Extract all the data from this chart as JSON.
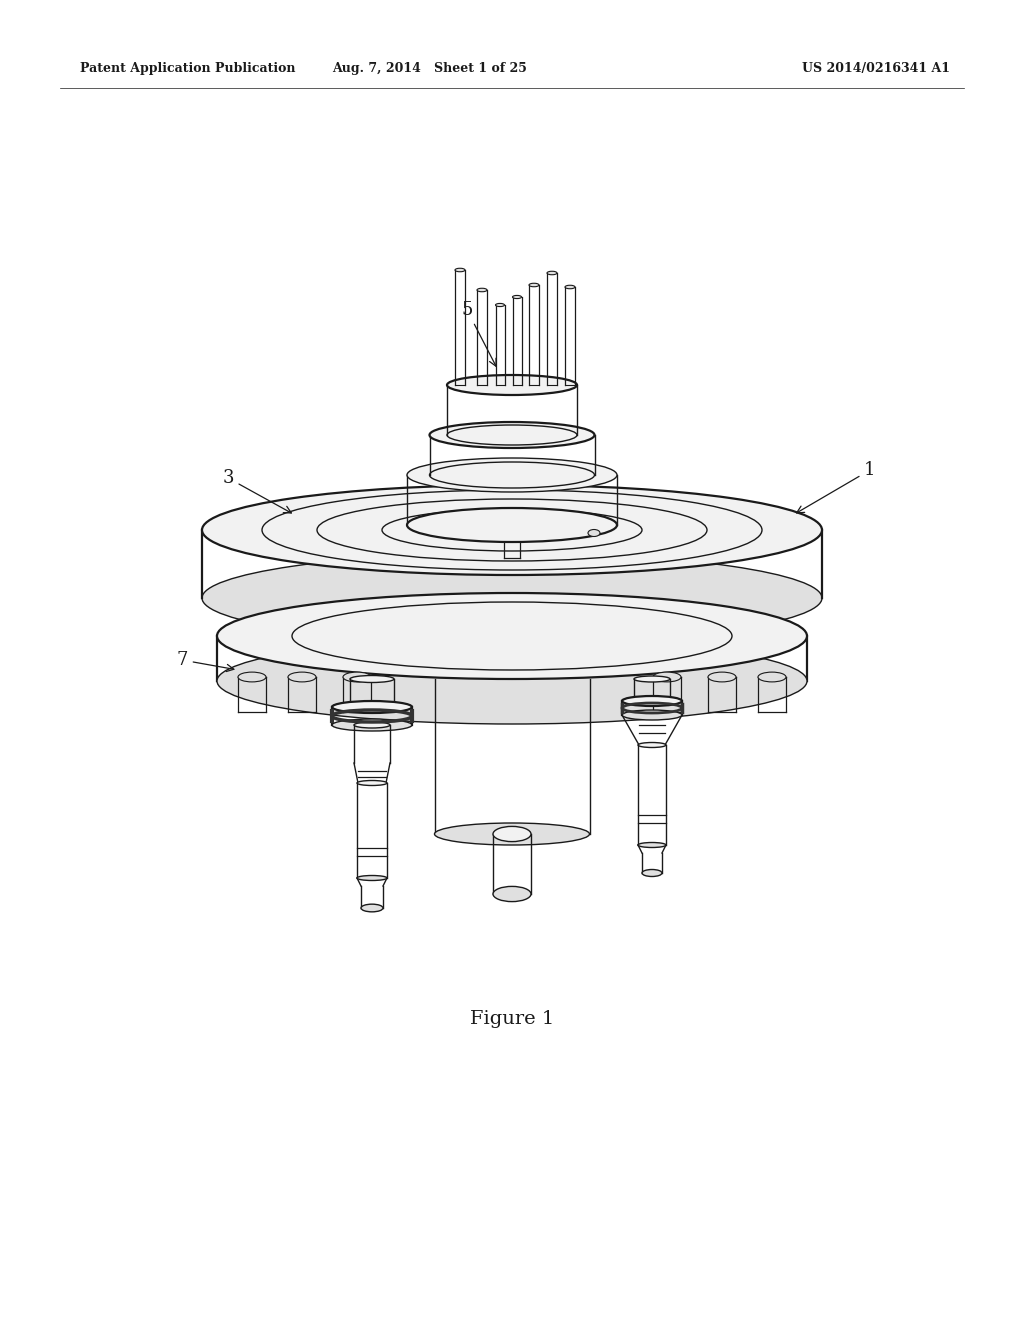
{
  "bg_color": "#ffffff",
  "line_color": "#1a1a1a",
  "header_left": "Patent Application Publication",
  "header_center": "Aug. 7, 2014   Sheet 1 of 25",
  "header_right": "US 2014/0216341 A1",
  "figure_caption": "Figure 1",
  "lw": 1.0,
  "lwt": 1.6,
  "gray_light": "#f2f2f2",
  "gray_mid": "#e0e0e0",
  "gray_dark": "#c8c8c8",
  "gray_side": "#d8d8d8"
}
